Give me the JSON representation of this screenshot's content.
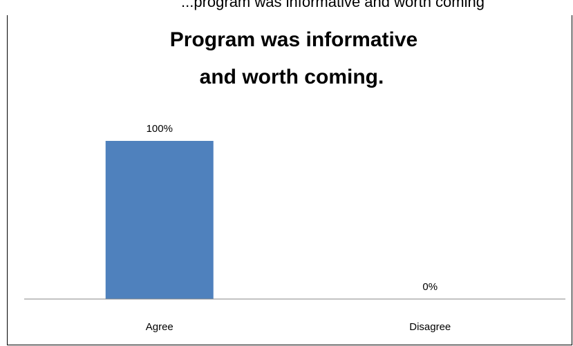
{
  "header": {
    "partial_text": "...program was informative and worth coming"
  },
  "chart_data": {
    "type": "bar",
    "title_lines": [
      "Program was informative",
      "and worth coming."
    ],
    "categories": [
      "Agree",
      "Disagree"
    ],
    "values": [
      100,
      0
    ],
    "data_labels": [
      "100%",
      "0%"
    ],
    "ylim": [
      0,
      100
    ],
    "grid": false,
    "legend": "none",
    "colors": {
      "bar": "#4F81BD",
      "axis": "#868686",
      "border": "#000000"
    }
  }
}
